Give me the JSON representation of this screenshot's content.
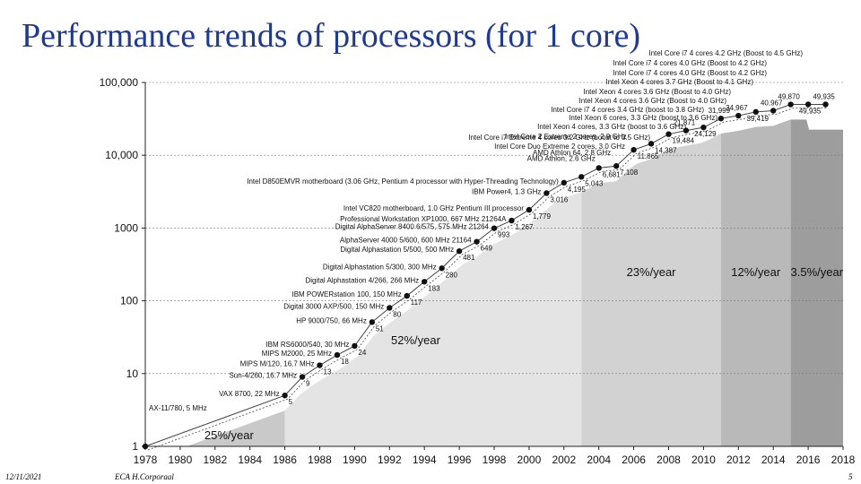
{
  "slide": {
    "title": "Performance trends of processors (for 1 core)",
    "footer_date": "12/11/2021",
    "footer_center": "ECA H.Corporaal",
    "footer_page": "5"
  },
  "chart_data": {
    "type": "scatter",
    "xlabel": "",
    "ylabel": "",
    "yscale": "log",
    "xlim": [
      1978,
      2018
    ],
    "ylim": [
      1,
      100000
    ],
    "x_ticks": [
      "1978",
      "1980",
      "1982",
      "1984",
      "1986",
      "1988",
      "1990",
      "1992",
      "1994",
      "1996",
      "1998",
      "2000",
      "2002",
      "2004",
      "2006",
      "2008",
      "2010",
      "2012",
      "2014",
      "2016",
      "2018"
    ],
    "y_ticks": [
      "1",
      "10",
      "100",
      "1000",
      "10,000",
      "100,000"
    ],
    "regions": [
      {
        "from": 1978,
        "to": 1986,
        "label": "25%/year",
        "color": "#c9c9c9"
      },
      {
        "from": 1986,
        "to": 2003,
        "label": "52%/year",
        "color": "#e4e4e4"
      },
      {
        "from": 2003,
        "to": 2011,
        "label": "23%/year",
        "color": "#d2d2d2"
      },
      {
        "from": 2011,
        "to": 2015,
        "label": "12%/year",
        "color": "#b9b9b9"
      },
      {
        "from": 2015,
        "to": 2018,
        "label": "3.5%/year",
        "color": "#9d9d9d"
      }
    ],
    "points": [
      {
        "x": 1978,
        "y": 1,
        "label": "AX-11/780, 5 MHz",
        "value": ""
      },
      {
        "x": 1986,
        "y": 5,
        "label": "VAX 8700, 22 MHz",
        "value": "5"
      },
      {
        "x": 1987,
        "y": 9,
        "label": "Sun-4/260, 16.7 MHz",
        "value": "9"
      },
      {
        "x": 1988,
        "y": 13,
        "label": "MIPS M/120, 16.7 MHz",
        "value": "13"
      },
      {
        "x": 1989,
        "y": 18,
        "label": "MIPS M2000, 25 MHz",
        "value": "18"
      },
      {
        "x": 1990,
        "y": 24,
        "label": "IBM RS6000/540, 30 MHz",
        "value": "24"
      },
      {
        "x": 1991,
        "y": 51,
        "label": "HP 9000/750, 66 MHz",
        "value": "51"
      },
      {
        "x": 1992,
        "y": 80,
        "label": "Digital 3000 AXP/500, 150 MHz",
        "value": "80"
      },
      {
        "x": 1993,
        "y": 117,
        "label": "IBM POWERstation 100, 150 MHz",
        "value": "117"
      },
      {
        "x": 1994,
        "y": 183,
        "label": "Digital Alphastation 4/266, 266 MHz",
        "value": "183"
      },
      {
        "x": 1995,
        "y": 280,
        "label": "Digital Alphastation 5/300, 300 MHz",
        "value": "280"
      },
      {
        "x": 1996,
        "y": 481,
        "label": "Digital Alphastation 5/500, 500 MHz",
        "value": "481"
      },
      {
        "x": 1997,
        "y": 649,
        "label": "AlphaServer 4000 5/600, 600 MHz 21164",
        "value": "649"
      },
      {
        "x": 1998,
        "y": 993,
        "label": "Digital AlphaServer 8400 6/575, 575 MHz 21264",
        "value": "993"
      },
      {
        "x": 1999,
        "y": 1267,
        "label": "Professional Workstation XP1000, 667 MHz 21264A",
        "value": "1,267"
      },
      {
        "x": 2000,
        "y": 1779,
        "label": "Intel VC820 motherboard, 1.0 GHz Pentium III processor",
        "value": "1,779"
      },
      {
        "x": 2001,
        "y": 3016,
        "label": "IBM Power4, 1.3 GHz",
        "value": "3,016"
      },
      {
        "x": 2002,
        "y": 4195,
        "label": "Intel D850EMVR motherboard (3.06 GHz, Pentium 4 processor with Hyper-Threading Technology)",
        "value": "4,195"
      },
      {
        "x": 2003,
        "y": 5043,
        "label": "",
        "value": "5,043"
      },
      {
        "x": 2004,
        "y": 6681,
        "label": "AMD Athlon, 2.6 GHz",
        "value": "6,681"
      },
      {
        "x": 2005,
        "y": 7108,
        "label": "AMD Athlon 64, 2.8 GHz",
        "value": "7,108"
      },
      {
        "x": 2006,
        "y": 11865,
        "label": "Intel Core 2 Extreme 2 cores, 2.9 GHz",
        "value": "11,865"
      },
      {
        "x": 2007,
        "y": 14387,
        "label": "Intel Core Duo Extreme 2 cores, 3.0 GHz",
        "value": "14,387"
      },
      {
        "x": 2008,
        "y": 19484,
        "label": "Intel Core i7 Extreme 4 cores 3.2 GHz (boost to 3.5 GHz)",
        "value": "19,484"
      },
      {
        "x": 2009,
        "y": 21871,
        "label": "Intel Xeon 4 cores, 3.3 GHz (boost to 3.6 GHz)",
        "value": "21,871"
      },
      {
        "x": 2010,
        "y": 24129,
        "label": "Intel Xeon 6 cores, 3.3 GHz (boost to 3.6 GHz)",
        "value": "24,129"
      },
      {
        "x": 2011,
        "y": 31999,
        "label": "Intel Core i7 4 cores 3.4 GHz (boost to 3.8 GHz)",
        "value": "31,999"
      },
      {
        "x": 2012,
        "y": 34967,
        "label": "Intel Xeon 4 cores 3.6 GHz (Boost to 4.0 GHz)",
        "value": "34,967"
      },
      {
        "x": 2013,
        "y": 39419,
        "label": "Intel Xeon 4 cores 3.6 GHz (Boost to 4.0 GHz)",
        "value": "39,419"
      },
      {
        "x": 2014,
        "y": 40967,
        "label": "Intel Xeon 4 cores 3.7 GHz (Boost to 4.1 GHz)",
        "value": "40,967"
      },
      {
        "x": 2015,
        "y": 49870,
        "label": "Intel Core i7 4 cores 4.0 GHz (Boost to 4.2 GHz)",
        "value": "49,870"
      },
      {
        "x": 2016,
        "y": 49935,
        "label": "Intel Core i7 4 cores 4.0 GHz (Boost to 4.2 GHz)",
        "value": "49,935"
      },
      {
        "x": 2017,
        "y": 49935,
        "label": "Intel Core i7 4 cores 4.2 GHz (Boost to 4.5 GHz)",
        "value": "49,935"
      }
    ],
    "point_color": "#111111",
    "trend_color": "#444444"
  }
}
